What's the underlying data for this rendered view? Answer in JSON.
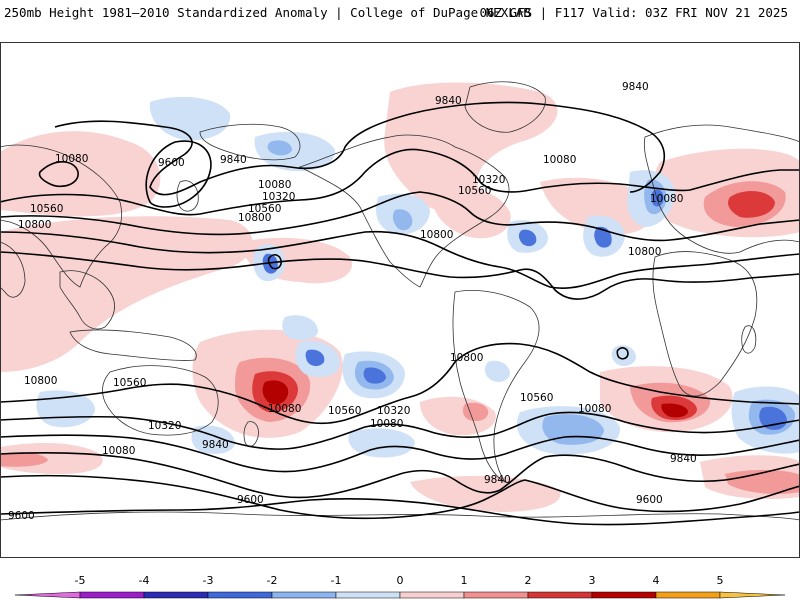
{
  "header": {
    "title": "250mb Height 1981–2010 Standardized Anomaly | College of DuPage NEXLAB",
    "run_info": "06Z GFS | F117 Valid: 03Z FRI NOV 21 2025"
  },
  "contour_labels": [
    {
      "id": "cl-9840-a",
      "text": "9840"
    },
    {
      "id": "cl-9840-b",
      "text": "9840"
    },
    {
      "id": "cl-9840-c",
      "text": "9840"
    },
    {
      "id": "cl-9600-a",
      "text": "9600"
    },
    {
      "id": "cl-10080-a",
      "text": "10080"
    },
    {
      "id": "cl-10080-b",
      "text": "10080"
    },
    {
      "id": "cl-10080-c",
      "text": "10080"
    },
    {
      "id": "cl-10080-d",
      "text": "10080"
    },
    {
      "id": "cl-10320-a",
      "text": "10320"
    },
    {
      "id": "cl-10320-b",
      "text": "10320"
    },
    {
      "id": "cl-10560-a",
      "text": "10560"
    },
    {
      "id": "cl-10560-b",
      "text": "10560"
    },
    {
      "id": "cl-10560-c",
      "text": "10560"
    },
    {
      "id": "cl-10800-a",
      "text": "10800"
    },
    {
      "id": "cl-10800-b",
      "text": "10800"
    },
    {
      "id": "cl-10800-c",
      "text": "10800"
    },
    {
      "id": "cl-10800-d",
      "text": "10800"
    },
    {
      "id": "cl-10800-e",
      "text": "10800"
    },
    {
      "id": "cl-10800-f",
      "text": "10800"
    },
    {
      "id": "cl-10560-d",
      "text": "10560"
    },
    {
      "id": "cl-10560-e",
      "text": "10560"
    },
    {
      "id": "cl-10320-c",
      "text": "10320"
    },
    {
      "id": "cl-10320-d",
      "text": "10320"
    },
    {
      "id": "cl-10080-e",
      "text": "10080"
    },
    {
      "id": "cl-10080-f",
      "text": "10080"
    },
    {
      "id": "cl-10080-g",
      "text": "10080"
    },
    {
      "id": "cl-10080-h",
      "text": "10080"
    },
    {
      "id": "cl-9840-d",
      "text": "9840"
    },
    {
      "id": "cl-9840-e",
      "text": "9840"
    },
    {
      "id": "cl-9840-f",
      "text": "9840"
    },
    {
      "id": "cl-9600-b",
      "text": "9600"
    },
    {
      "id": "cl-9600-c",
      "text": "9600"
    },
    {
      "id": "cl-9600-d",
      "text": "9600"
    },
    {
      "id": "cl-10560-f",
      "text": "10560"
    }
  ],
  "legend": {
    "ticks": [
      "-5",
      "-4",
      "-3",
      "-2",
      "-1",
      "0",
      "1",
      "2",
      "3",
      "4",
      "5"
    ],
    "colors": [
      "#9b1fc8",
      "#2b2bb4",
      "#3f68d8",
      "#8db4ee",
      "#cde0f6",
      "#ffffff",
      "#f8cfd0",
      "#f09090",
      "#d43535",
      "#b50000",
      "#f2a01a"
    ],
    "left_arrow_color": "#e06be0",
    "right_arrow_color": "#f5c242"
  },
  "colors": {
    "pos1": "#f9d2d2",
    "pos2": "#f29a9a",
    "pos3": "#dc3a3a",
    "pos4": "#b30000",
    "neg1": "#cfe1f7",
    "neg2": "#93b8ee",
    "neg3": "#4a74dc",
    "neg4": "#2a3fb8"
  }
}
